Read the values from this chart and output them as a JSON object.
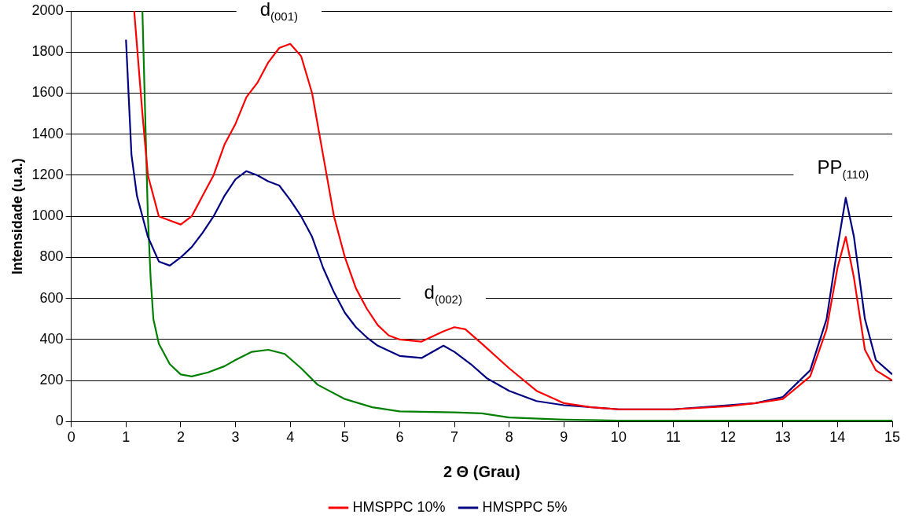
{
  "chart_data": {
    "type": "line",
    "xlabel": "2 Θ (Grau)",
    "ylabel": "Intensidade (u.a.)",
    "xlim": [
      0,
      15
    ],
    "xticks": [
      0,
      1,
      2,
      3,
      4,
      5,
      6,
      7,
      8,
      9,
      10,
      11,
      12,
      13,
      14,
      15
    ],
    "ylim": [
      0,
      2000
    ],
    "yticks": [
      0,
      200,
      400,
      600,
      800,
      1000,
      1200,
      1400,
      1600,
      1800,
      2000
    ],
    "grid": "y",
    "legend": "bottom",
    "marker": "none",
    "line_style": "solid",
    "series": [
      {
        "name": "HMSPPC 10%",
        "color": "#ff0000",
        "x": [
          1.15,
          1.3,
          1.4,
          1.6,
          1.8,
          2.0,
          2.2,
          2.4,
          2.6,
          2.8,
          3.0,
          3.2,
          3.4,
          3.6,
          3.8,
          4.0,
          4.2,
          4.4,
          4.6,
          4.8,
          5.0,
          5.2,
          5.4,
          5.6,
          5.8,
          6.0,
          6.4,
          6.8,
          7.0,
          7.2,
          7.5,
          8.0,
          8.5,
          9.0,
          9.5,
          10,
          11,
          12,
          12.5,
          13,
          13.5,
          13.8,
          14.0,
          14.15,
          14.3,
          14.5,
          14.7,
          15.0
        ],
        "values": [
          2000,
          1500,
          1200,
          1000,
          980,
          960,
          1000,
          1100,
          1200,
          1350,
          1450,
          1580,
          1650,
          1750,
          1820,
          1840,
          1780,
          1600,
          1300,
          1000,
          800,
          650,
          550,
          470,
          420,
          400,
          390,
          440,
          460,
          450,
          380,
          260,
          150,
          90,
          70,
          60,
          60,
          75,
          90,
          110,
          220,
          450,
          750,
          900,
          700,
          350,
          250,
          200
        ]
      },
      {
        "name": "HMSPPC 5%",
        "color": "#000080",
        "x": [
          1.0,
          1.1,
          1.2,
          1.4,
          1.6,
          1.8,
          2.0,
          2.2,
          2.4,
          2.6,
          2.8,
          3.0,
          3.2,
          3.4,
          3.6,
          3.8,
          4.0,
          4.2,
          4.4,
          4.6,
          4.8,
          5.0,
          5.2,
          5.4,
          5.6,
          6.0,
          6.4,
          6.8,
          7.0,
          7.3,
          7.6,
          8.0,
          8.5,
          9.0,
          10,
          11,
          12,
          12.5,
          13,
          13.5,
          13.8,
          14.0,
          14.15,
          14.3,
          14.5,
          14.7,
          15.0
        ],
        "values": [
          1860,
          1300,
          1100,
          900,
          780,
          760,
          800,
          850,
          920,
          1000,
          1100,
          1180,
          1220,
          1200,
          1170,
          1150,
          1080,
          1000,
          900,
          750,
          630,
          530,
          460,
          410,
          370,
          320,
          310,
          370,
          340,
          280,
          210,
          150,
          100,
          80,
          60,
          60,
          80,
          90,
          120,
          250,
          500,
          850,
          1090,
          900,
          500,
          300,
          230
        ]
      },
      {
        "color": "#008000",
        "x": [
          1.3,
          1.35,
          1.4,
          1.45,
          1.5,
          1.6,
          1.8,
          2.0,
          2.2,
          2.5,
          2.8,
          3.0,
          3.3,
          3.6,
          3.9,
          4.2,
          4.5,
          5.0,
          5.5,
          6.0,
          7.0,
          7.5,
          8.0,
          9.0,
          10,
          15
        ],
        "values": [
          2000,
          1500,
          1000,
          700,
          500,
          380,
          280,
          230,
          220,
          240,
          270,
          300,
          340,
          350,
          330,
          260,
          180,
          110,
          70,
          50,
          45,
          40,
          20,
          10,
          5,
          5
        ]
      }
    ],
    "annotations": [
      "d$_{(001)}$",
      "d$_{(002)}$",
      "PP$_{(110)}$"
    ]
  }
}
